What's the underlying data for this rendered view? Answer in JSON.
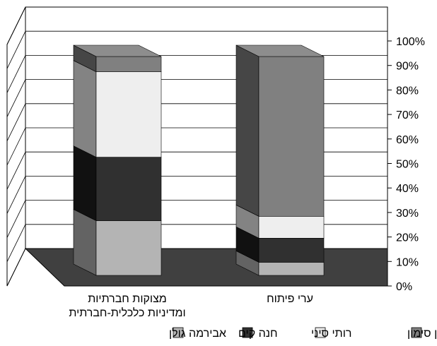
{
  "chart_data": {
    "type": "bar",
    "stacked": "percent",
    "style": "3d",
    "categories": [
      [
        "מצוקות חברתיות",
        "ומדיניות כלכלית-חברתית"
      ],
      [
        "ערי פיתוח"
      ]
    ],
    "series": [
      {
        "name": "אבירמה גולן",
        "values": [
          25,
          6
        ],
        "color": "#b4b4b4"
      },
      {
        "name": "חנה קים",
        "values": [
          29,
          11
        ],
        "color": "#303030"
      },
      {
        "name": "רותי סיני",
        "values": [
          39,
          10
        ],
        "color": "#eeeeee"
      },
      {
        "name": "דניאל בן סימון",
        "values": [
          7,
          73
        ],
        "color": "#808080"
      }
    ],
    "y_ticks": [
      "0%",
      "10%",
      "20%",
      "30%",
      "40%",
      "50%",
      "60%",
      "70%",
      "80%",
      "90%",
      "100%"
    ],
    "ylim": [
      0,
      100
    ],
    "grid": true,
    "legend_position": "bottom"
  }
}
